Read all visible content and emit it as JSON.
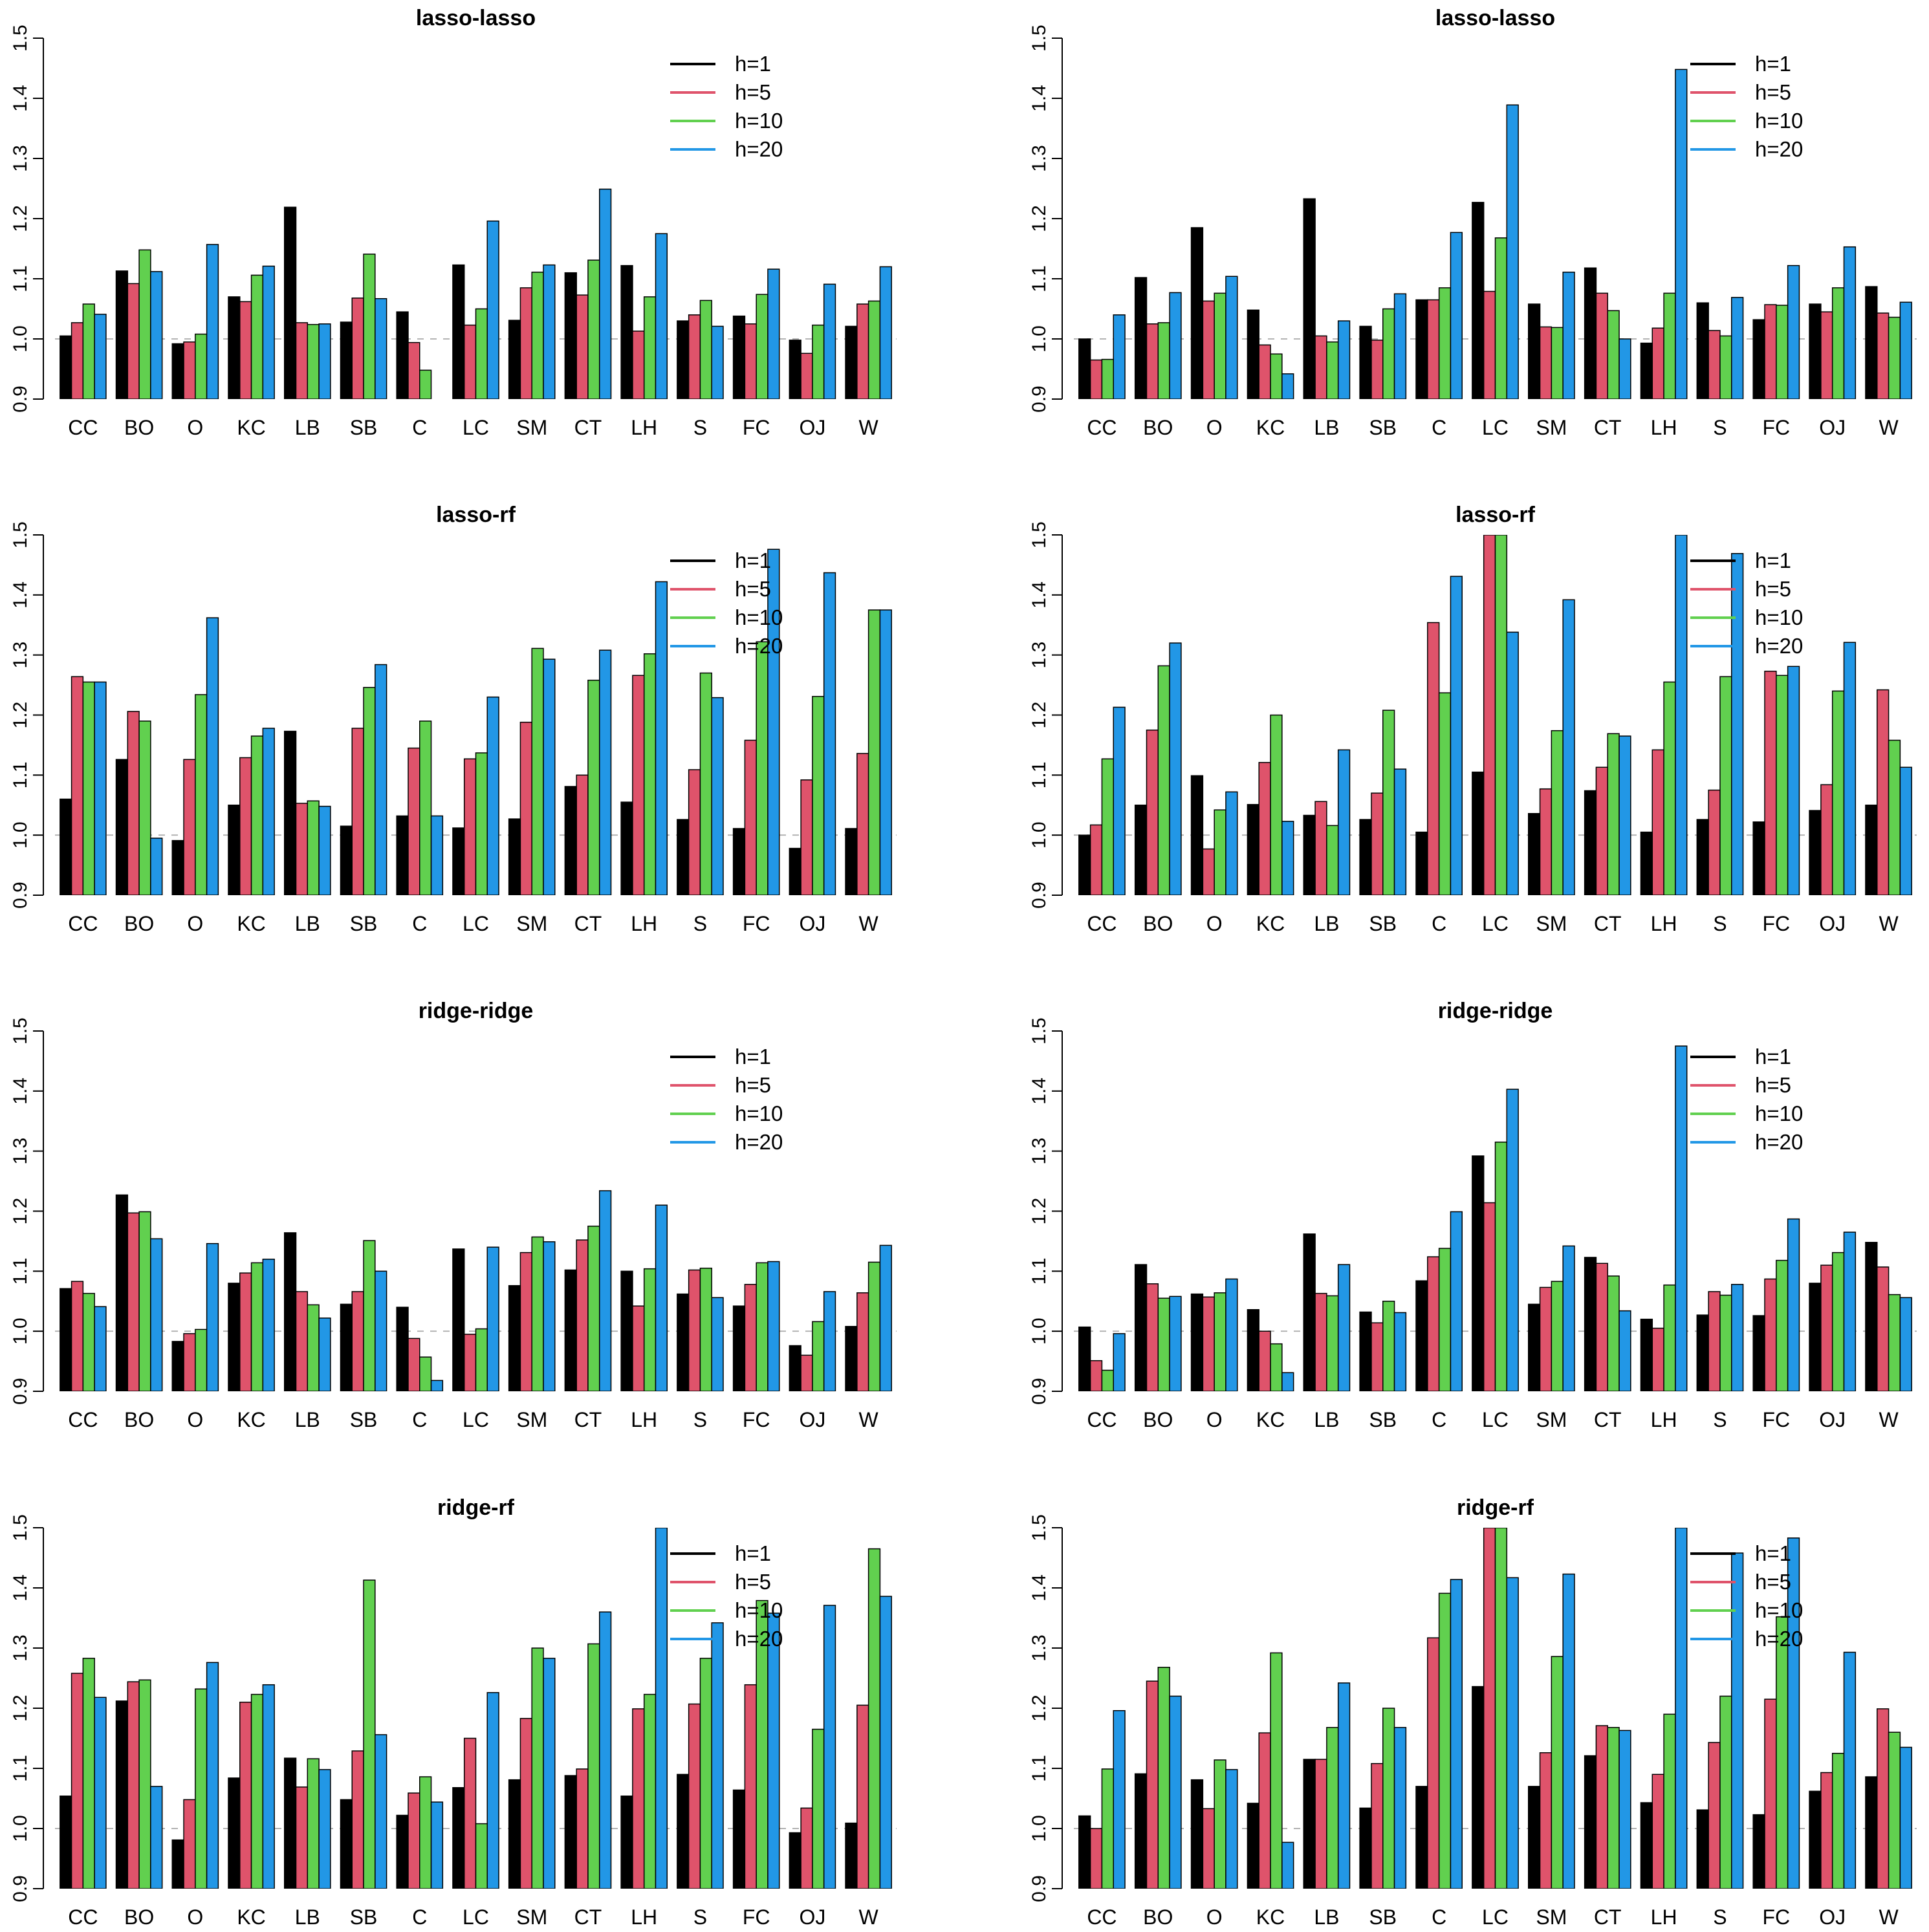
{
  "categories": [
    "CC",
    "BO",
    "O",
    "KC",
    "LB",
    "SB",
    "C",
    "LC",
    "SM",
    "CT",
    "LH",
    "S",
    "FC",
    "OJ",
    "W"
  ],
  "series_names": [
    "h=1",
    "h=5",
    "h=10",
    "h=20"
  ],
  "colors": {
    "h=1": "#000000",
    "h=5": "#DF536B",
    "h=10": "#61D04F",
    "h=20": "#2297E6",
    "reference_line": "#b4b4b4"
  },
  "y_tick_labels": [
    "0.9",
    "1.0",
    "1.1",
    "1.2",
    "1.3",
    "1.4",
    "1.5"
  ],
  "chart_data": [
    {
      "type": "bar",
      "title": "lasso-lasso",
      "ylim": [
        0.9,
        1.5
      ],
      "reference": 1.0,
      "legend": "top-right",
      "categories": [
        "CC",
        "BO",
        "O",
        "KC",
        "LB",
        "SB",
        "C",
        "LC",
        "SM",
        "CT",
        "LH",
        "S",
        "FC",
        "OJ",
        "W"
      ],
      "series": [
        {
          "name": "h=1",
          "values": [
            1.005,
            1.113,
            0.992,
            1.07,
            1.219,
            1.028,
            1.045,
            1.123,
            1.031,
            1.11,
            1.122,
            1.03,
            1.038,
            0.998,
            1.021
          ]
        },
        {
          "name": "h=5",
          "values": [
            1.027,
            1.092,
            0.995,
            1.062,
            1.027,
            1.068,
            0.994,
            1.023,
            1.085,
            1.073,
            1.013,
            1.04,
            1.025,
            0.976,
            1.058
          ]
        },
        {
          "name": "h=10",
          "values": [
            1.058,
            1.148,
            1.008,
            1.106,
            1.024,
            1.141,
            0.948,
            1.05,
            1.111,
            1.131,
            1.07,
            1.064,
            1.074,
            1.023,
            1.063
          ]
        },
        {
          "name": "h=20",
          "values": [
            1.041,
            1.112,
            1.157,
            1.121,
            1.025,
            1.067,
            0.9,
            1.196,
            1.123,
            1.249,
            1.175,
            1.021,
            1.116,
            1.091,
            1.12
          ]
        }
      ]
    },
    {
      "type": "bar",
      "title": "lasso-lasso",
      "ylim": [
        0.9,
        1.5
      ],
      "reference": 1.0,
      "legend": "top-right",
      "categories": [
        "CC",
        "BO",
        "O",
        "KC",
        "LB",
        "SB",
        "C",
        "LC",
        "SM",
        "CT",
        "LH",
        "S",
        "FC",
        "OJ",
        "W"
      ],
      "series": [
        {
          "name": "h=1",
          "values": [
            1.0,
            1.102,
            1.185,
            1.048,
            1.233,
            1.021,
            1.065,
            1.227,
            1.058,
            1.118,
            0.993,
            1.06,
            1.032,
            1.058,
            1.087
          ]
        },
        {
          "name": "h=5",
          "values": [
            0.965,
            1.025,
            1.063,
            0.99,
            1.005,
            0.998,
            1.065,
            1.079,
            1.02,
            1.076,
            1.018,
            1.014,
            1.057,
            1.045,
            1.043
          ]
        },
        {
          "name": "h=10",
          "values": [
            0.966,
            1.027,
            1.076,
            0.975,
            0.995,
            1.05,
            1.085,
            1.168,
            1.019,
            1.047,
            1.076,
            1.005,
            1.056,
            1.085,
            1.036
          ]
        },
        {
          "name": "h=20",
          "values": [
            1.04,
            1.077,
            1.104,
            0.942,
            1.03,
            1.075,
            1.177,
            1.389,
            1.111,
            1.0,
            1.448,
            1.069,
            1.122,
            1.153,
            1.061
          ]
        }
      ]
    },
    {
      "type": "bar",
      "title": "lasso-rf",
      "ylim": [
        0.9,
        1.5
      ],
      "reference": 1.0,
      "legend": "top-right",
      "categories": [
        "CC",
        "BO",
        "O",
        "KC",
        "LB",
        "SB",
        "C",
        "LC",
        "SM",
        "CT",
        "LH",
        "S",
        "FC",
        "OJ",
        "W"
      ],
      "series": [
        {
          "name": "h=1",
          "values": [
            1.06,
            1.126,
            0.991,
            1.05,
            1.173,
            1.015,
            1.032,
            1.012,
            1.027,
            1.081,
            1.055,
            1.026,
            1.011,
            0.978,
            1.011
          ]
        },
        {
          "name": "h=5",
          "values": [
            1.264,
            1.206,
            1.126,
            1.129,
            1.053,
            1.178,
            1.145,
            1.127,
            1.188,
            1.1,
            1.266,
            1.109,
            1.158,
            1.092,
            1.136
          ]
        },
        {
          "name": "h=10",
          "values": [
            1.255,
            1.19,
            1.234,
            1.165,
            1.057,
            1.246,
            1.19,
            1.137,
            1.311,
            1.258,
            1.302,
            1.27,
            1.322,
            1.231,
            1.375
          ]
        },
        {
          "name": "h=20",
          "values": [
            1.255,
            0.995,
            1.362,
            1.178,
            1.048,
            1.284,
            1.032,
            1.23,
            1.293,
            1.308,
            1.422,
            1.229,
            1.476,
            1.437,
            1.375
          ]
        }
      ]
    },
    {
      "type": "bar",
      "title": "lasso-rf",
      "ylim": [
        0.9,
        1.5
      ],
      "reference": 1.0,
      "legend": "top-right",
      "categories": [
        "CC",
        "BO",
        "O",
        "KC",
        "LB",
        "SB",
        "C",
        "LC",
        "SM",
        "CT",
        "LH",
        "S",
        "FC",
        "OJ",
        "W"
      ],
      "series": [
        {
          "name": "h=1",
          "values": [
            1.0,
            1.05,
            1.099,
            1.051,
            1.033,
            1.026,
            1.005,
            1.105,
            1.036,
            1.074,
            1.005,
            1.026,
            1.022,
            1.041,
            1.05
          ]
        },
        {
          "name": "h=5",
          "values": [
            1.017,
            1.175,
            0.977,
            1.121,
            1.056,
            1.07,
            1.354,
            1.5,
            1.077,
            1.113,
            1.142,
            1.075,
            1.273,
            1.084,
            1.242
          ]
        },
        {
          "name": "h=10",
          "values": [
            1.127,
            1.282,
            1.042,
            1.2,
            1.016,
            1.208,
            1.237,
            1.5,
            1.174,
            1.169,
            1.255,
            1.264,
            1.266,
            1.24,
            1.158
          ]
        },
        {
          "name": "h=20",
          "values": [
            1.213,
            1.32,
            1.072,
            1.023,
            1.142,
            1.11,
            1.431,
            1.338,
            1.392,
            1.165,
            1.5,
            1.469,
            1.281,
            1.321,
            1.113
          ]
        }
      ]
    },
    {
      "type": "bar",
      "title": "ridge-ridge",
      "ylim": [
        0.9,
        1.5
      ],
      "reference": 1.0,
      "legend": "top-right",
      "categories": [
        "CC",
        "BO",
        "O",
        "KC",
        "LB",
        "SB",
        "C",
        "LC",
        "SM",
        "CT",
        "LH",
        "S",
        "FC",
        "OJ",
        "W"
      ],
      "series": [
        {
          "name": "h=1",
          "values": [
            1.071,
            1.227,
            0.983,
            1.08,
            1.164,
            1.045,
            1.04,
            1.137,
            1.076,
            1.102,
            1.1,
            1.062,
            1.042,
            0.976,
            1.008
          ]
        },
        {
          "name": "h=5",
          "values": [
            1.083,
            1.197,
            0.996,
            1.097,
            1.066,
            1.066,
            0.988,
            0.995,
            1.131,
            1.152,
            1.042,
            1.102,
            1.078,
            0.96,
            1.064
          ]
        },
        {
          "name": "h=10",
          "values": [
            1.063,
            1.199,
            1.003,
            1.114,
            1.044,
            1.151,
            0.957,
            1.004,
            1.157,
            1.175,
            1.104,
            1.105,
            1.114,
            1.016,
            1.115
          ]
        },
        {
          "name": "h=20",
          "values": [
            1.041,
            1.154,
            1.146,
            1.12,
            1.022,
            1.1,
            0.918,
            1.14,
            1.149,
            1.234,
            1.21,
            1.056,
            1.116,
            1.066,
            1.143
          ]
        }
      ]
    },
    {
      "type": "bar",
      "title": "ridge-ridge",
      "ylim": [
        0.9,
        1.5
      ],
      "reference": 1.0,
      "legend": "top-right",
      "categories": [
        "CC",
        "BO",
        "O",
        "KC",
        "LB",
        "SB",
        "C",
        "LC",
        "SM",
        "CT",
        "LH",
        "S",
        "FC",
        "OJ",
        "W"
      ],
      "series": [
        {
          "name": "h=1",
          "values": [
            1.007,
            1.111,
            1.062,
            1.036,
            1.162,
            1.032,
            1.084,
            1.292,
            1.045,
            1.123,
            1.02,
            1.027,
            1.026,
            1.08,
            1.148
          ]
        },
        {
          "name": "h=5",
          "values": [
            0.951,
            1.079,
            1.057,
            1.0,
            1.063,
            1.014,
            1.124,
            1.214,
            1.073,
            1.113,
            1.005,
            1.066,
            1.087,
            1.11,
            1.107
          ]
        },
        {
          "name": "h=10",
          "values": [
            0.935,
            1.055,
            1.064,
            0.979,
            1.059,
            1.05,
            1.138,
            1.315,
            1.083,
            1.092,
            1.077,
            1.06,
            1.118,
            1.131,
            1.061
          ]
        },
        {
          "name": "h=20",
          "values": [
            0.996,
            1.058,
            1.087,
            0.931,
            1.111,
            1.031,
            1.199,
            1.403,
            1.142,
            1.034,
            1.475,
            1.078,
            1.187,
            1.165,
            1.056
          ]
        }
      ]
    },
    {
      "type": "bar",
      "title": "ridge-rf",
      "ylim": [
        0.9,
        1.5
      ],
      "reference": 1.0,
      "legend": "top-right",
      "categories": [
        "CC",
        "BO",
        "O",
        "KC",
        "LB",
        "SB",
        "C",
        "LC",
        "SM",
        "CT",
        "LH",
        "S",
        "FC",
        "OJ",
        "W"
      ],
      "series": [
        {
          "name": "h=1",
          "values": [
            1.054,
            1.212,
            0.981,
            1.084,
            1.117,
            1.048,
            1.022,
            1.068,
            1.081,
            1.088,
            1.054,
            1.09,
            1.064,
            0.993,
            1.009
          ]
        },
        {
          "name": "h=5",
          "values": [
            1.258,
            1.244,
            1.048,
            1.21,
            1.069,
            1.129,
            1.059,
            1.15,
            1.183,
            1.099,
            1.199,
            1.207,
            1.239,
            1.034,
            1.205
          ]
        },
        {
          "name": "h=10",
          "values": [
            1.283,
            1.247,
            1.232,
            1.223,
            1.116,
            1.413,
            1.086,
            1.008,
            1.3,
            1.307,
            1.223,
            1.283,
            1.379,
            1.165,
            1.465
          ]
        },
        {
          "name": "h=20",
          "values": [
            1.218,
            1.07,
            1.276,
            1.239,
            1.098,
            1.156,
            1.044,
            1.226,
            1.283,
            1.36,
            1.5,
            1.342,
            1.358,
            1.371,
            1.386
          ]
        }
      ]
    },
    {
      "type": "bar",
      "title": "ridge-rf",
      "ylim": [
        0.9,
        1.5
      ],
      "reference": 1.0,
      "legend": "top-right",
      "categories": [
        "CC",
        "BO",
        "O",
        "KC",
        "LB",
        "SB",
        "C",
        "LC",
        "SM",
        "CT",
        "LH",
        "S",
        "FC",
        "OJ",
        "W"
      ],
      "series": [
        {
          "name": "h=1",
          "values": [
            1.021,
            1.091,
            1.081,
            1.042,
            1.115,
            1.034,
            1.07,
            1.236,
            1.07,
            1.121,
            1.043,
            1.031,
            1.023,
            1.062,
            1.086
          ]
        },
        {
          "name": "h=5",
          "values": [
            1.0,
            1.245,
            1.033,
            1.159,
            1.115,
            1.108,
            1.317,
            1.5,
            1.126,
            1.171,
            1.09,
            1.143,
            1.215,
            1.093,
            1.199
          ]
        },
        {
          "name": "h=10",
          "values": [
            1.099,
            1.268,
            1.114,
            1.292,
            1.168,
            1.2,
            1.391,
            1.5,
            1.286,
            1.168,
            1.19,
            1.22,
            1.352,
            1.125,
            1.16
          ]
        },
        {
          "name": "h=20",
          "values": [
            1.196,
            1.22,
            1.098,
            0.977,
            1.242,
            1.168,
            1.414,
            1.417,
            1.423,
            1.163,
            1.5,
            1.458,
            1.483,
            1.293,
            1.135
          ]
        }
      ]
    }
  ]
}
